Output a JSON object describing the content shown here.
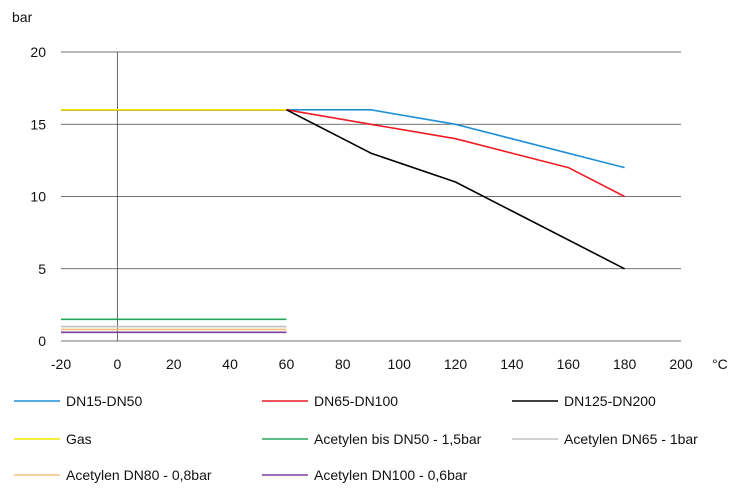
{
  "chart_data": {
    "type": "line",
    "ylabel": "bar",
    "xlabel": "°C",
    "xlim": [
      -20,
      200
    ],
    "ylim": [
      0,
      20
    ],
    "xticks": [
      "-20",
      "0",
      "20",
      "40",
      "60",
      "80",
      "100",
      "120",
      "140",
      "160",
      "180",
      "200"
    ],
    "yticks": [
      "0",
      "5",
      "10",
      "15",
      "20"
    ],
    "grid": "horizontal",
    "legend_position": "bottom",
    "series": [
      {
        "name": "DN15-DN50",
        "color": "#1f8fd6",
        "points": [
          [
            -20,
            16
          ],
          [
            60,
            16
          ],
          [
            90,
            16
          ],
          [
            120,
            15
          ],
          [
            180,
            12
          ]
        ]
      },
      {
        "name": "DN65-DN100",
        "color": "#ee1c24",
        "points": [
          [
            -20,
            16
          ],
          [
            60,
            16
          ],
          [
            90,
            15
          ],
          [
            120,
            14
          ],
          [
            160,
            12
          ],
          [
            180,
            10
          ]
        ]
      },
      {
        "name": "DN125-DN200",
        "color": "#000000",
        "points": [
          [
            -20,
            16
          ],
          [
            60,
            16
          ],
          [
            90,
            13
          ],
          [
            120,
            11
          ],
          [
            180,
            5
          ]
        ]
      },
      {
        "name": "Gas",
        "color": "#f2e500",
        "points": [
          [
            -20,
            16
          ],
          [
            60,
            16
          ]
        ]
      },
      {
        "name": "Acetylen bis DN50 - 1,5bar",
        "color": "#23a85a",
        "points": [
          [
            -20,
            1.5
          ],
          [
            60,
            1.5
          ]
        ]
      },
      {
        "name": "Acetylen DN65 - 1bar",
        "color": "#c0c0c0",
        "points": [
          [
            -20,
            1
          ],
          [
            60,
            1
          ]
        ]
      },
      {
        "name": "Acetylen DN80 - 0,8bar",
        "color": "#f5c07a",
        "points": [
          [
            -20,
            0.8
          ],
          [
            60,
            0.8
          ]
        ]
      },
      {
        "name": "Acetylen DN100 - 0,6bar",
        "color": "#7b3fa0",
        "points": [
          [
            -20,
            0.6
          ],
          [
            60,
            0.6
          ]
        ]
      }
    ]
  }
}
